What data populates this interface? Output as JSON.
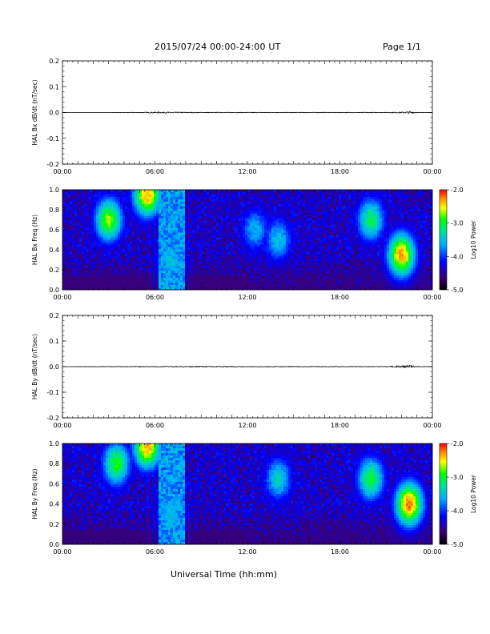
{
  "header": {
    "title": "2015/07/24  00:00-24:00 UT",
    "page": "Page 1/1"
  },
  "footer": {
    "xlabel": "Universal Time (hh:mm)"
  },
  "chart_data": [
    {
      "type": "line",
      "ylabel": "HAL Bx dB/dt (nT/sec)",
      "xlim": [
        "00:00",
        "24:00"
      ],
      "xticks": [
        "00:00",
        "06:00",
        "12:00",
        "18:00",
        "00:00"
      ],
      "ylim": [
        -0.2,
        0.2
      ],
      "yticks": [
        "0.2",
        "0.1",
        "0.0",
        "-0.1",
        "-0.2"
      ],
      "series": [
        {
          "x": [
            "00:00",
            "03:00",
            "05:00",
            "06:00",
            "07:00",
            "09:00",
            "12:00",
            "15:00",
            "18:00",
            "21:00",
            "22:00",
            "22:30",
            "23:00",
            "24:00"
          ],
          "y": [
            0.0,
            0.0,
            0.001,
            0.002,
            0.002,
            0.001,
            0.001,
            0.001,
            0.001,
            0.001,
            0.002,
            0.004,
            0.001,
            0.0
          ]
        }
      ]
    },
    {
      "type": "heatmap",
      "ylabel": "HAL Bx Freq (Hz)",
      "xlim": [
        "00:00",
        "24:00"
      ],
      "xticks": [
        "00:00",
        "06:00",
        "12:00",
        "18:00",
        "00:00"
      ],
      "ylim": [
        0,
        1.0
      ],
      "yticks": [
        "1.0",
        "0.8",
        "0.6",
        "0.4",
        "0.2",
        "0.0"
      ],
      "colorbar": {
        "label": "Log10 Power",
        "range": [
          -5.0,
          -2.0
        ],
        "ticks": [
          "-2.0",
          "-3.0",
          "-4.0",
          "-5.0"
        ]
      },
      "features": [
        {
          "time": "03:00",
          "freq": 0.7,
          "log_power": -2.7
        },
        {
          "time": "05:30",
          "freq": 0.95,
          "log_power": -2.3
        },
        {
          "time": "07:00",
          "freq": 0.3,
          "log_power": -3.5
        },
        {
          "time": "12:30",
          "freq": 0.6,
          "log_power": -3.6
        },
        {
          "time": "14:00",
          "freq": 0.5,
          "log_power": -3.5
        },
        {
          "time": "20:00",
          "freq": 0.7,
          "log_power": -3.1
        },
        {
          "time": "22:00",
          "freq": 0.35,
          "log_power": -2.3
        }
      ]
    },
    {
      "type": "line",
      "ylabel": "HAL By dB/dt (nT/sec)",
      "xlim": [
        "00:00",
        "24:00"
      ],
      "xticks": [
        "00:00",
        "06:00",
        "12:00",
        "18:00",
        "00:00"
      ],
      "ylim": [
        -0.2,
        0.2
      ],
      "yticks": [
        "0.2",
        "0.1",
        "0.0",
        "-0.1",
        "-0.2"
      ],
      "series": [
        {
          "x": [
            "00:00",
            "03:00",
            "06:00",
            "09:00",
            "12:00",
            "15:00",
            "18:00",
            "21:00",
            "22:30",
            "23:00",
            "24:00"
          ],
          "y": [
            0.0,
            0.001,
            0.001,
            0.002,
            0.001,
            0.001,
            0.001,
            0.001,
            0.006,
            0.001,
            0.0
          ]
        }
      ]
    },
    {
      "type": "heatmap",
      "ylabel": "HAL By Freq (Hz)",
      "xlim": [
        "00:00",
        "24:00"
      ],
      "xticks": [
        "00:00",
        "06:00",
        "12:00",
        "18:00",
        "00:00"
      ],
      "ylim": [
        0,
        1.0
      ],
      "yticks": [
        "1.0",
        "0.8",
        "0.6",
        "0.4",
        "0.2",
        "0.0"
      ],
      "colorbar": {
        "label": "Log10 Power",
        "range": [
          -5.0,
          -2.0
        ],
        "ticks": [
          "-2.0",
          "-3.0",
          "-4.0",
          "-5.0"
        ]
      },
      "features": [
        {
          "time": "03:30",
          "freq": 0.8,
          "log_power": -2.9
        },
        {
          "time": "05:30",
          "freq": 0.97,
          "log_power": -2.3
        },
        {
          "time": "07:00",
          "freq": 0.3,
          "log_power": -3.5
        },
        {
          "time": "14:00",
          "freq": 0.65,
          "log_power": -3.4
        },
        {
          "time": "20:00",
          "freq": 0.65,
          "log_power": -3.0
        },
        {
          "time": "22:30",
          "freq": 0.4,
          "log_power": -2.2
        }
      ]
    }
  ]
}
